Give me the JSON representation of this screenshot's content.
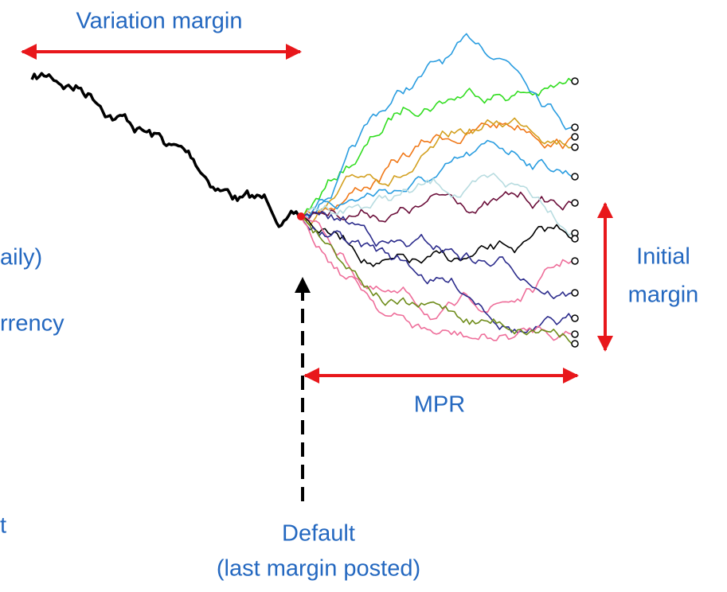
{
  "labels": {
    "variation_margin": "Variation margin",
    "cut_1": "aily)",
    "cut_2": "rrency",
    "cut_3": "t",
    "initial_margin_1": "Initial",
    "initial_margin_2": "margin",
    "mpr": "MPR",
    "default_1": "Default",
    "default_2": "(last margin posted)"
  }
}
